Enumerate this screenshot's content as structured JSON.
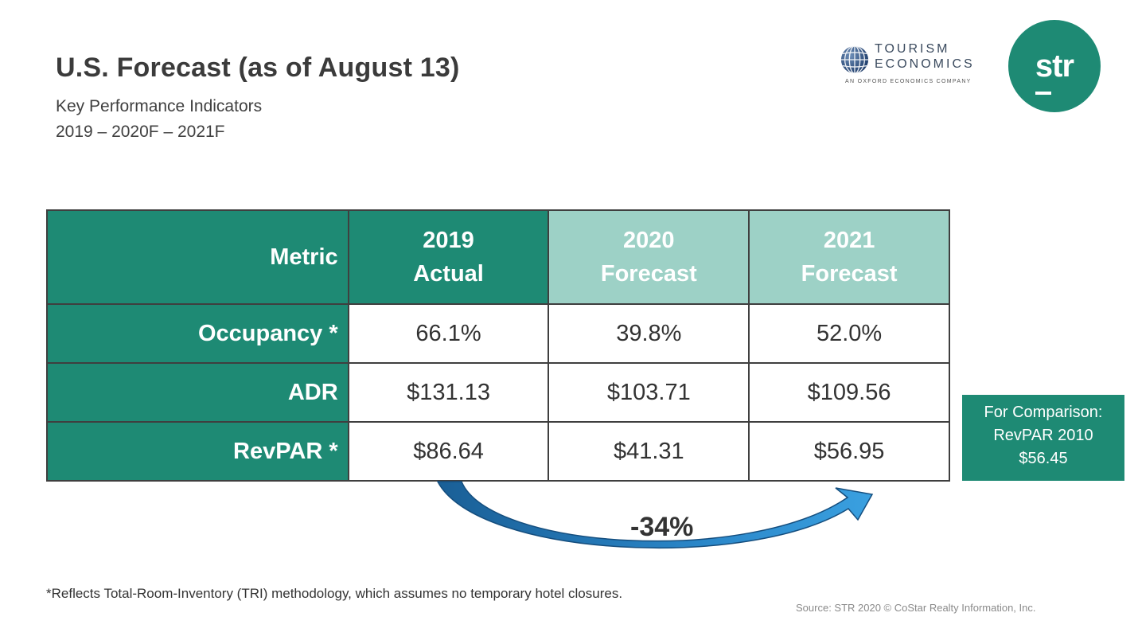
{
  "header": {
    "title": "U.S. Forecast (as of August 13)",
    "subtitle_line1": "Key Performance Indicators",
    "subtitle_line2": "2019 – 2020F – 2021F"
  },
  "logos": {
    "tourism_line1": "TOURISM",
    "tourism_line2": "ECONOMICS",
    "tourism_tagline": "AN OXFORD ECONOMICS COMPANY",
    "str_text": "str"
  },
  "table": {
    "headers": {
      "metric": "Metric",
      "col1_line1": "2019",
      "col1_line2": "Actual",
      "col2_line1": "2020",
      "col2_line2": "Forecast",
      "col3_line1": "2021",
      "col3_line2": "Forecast"
    },
    "rows": [
      {
        "metric": "Occupancy *",
        "v2019": "66.1%",
        "v2020": "39.8%",
        "v2021": "52.0%"
      },
      {
        "metric": "ADR",
        "v2019": "$131.13",
        "v2020": "$103.71",
        "v2021": "$109.56"
      },
      {
        "metric": "RevPAR *",
        "v2019": "$86.64",
        "v2020": "$41.31",
        "v2021": "$56.95"
      }
    ]
  },
  "comparison": {
    "line1": "For Comparison:",
    "line2": "RevPAR 2010",
    "line3": "$56.45"
  },
  "change_label": "-34%",
  "footnote": "*Reflects Total-Room-Inventory (TRI) methodology, which assumes no temporary hotel closures.",
  "source": "Source: STR 2020 © CoStar Realty Information, Inc.",
  "colors": {
    "primary_green": "#1e8a74",
    "light_green": "#9dd1c6",
    "arrow_blue": "#1f7fc0"
  }
}
